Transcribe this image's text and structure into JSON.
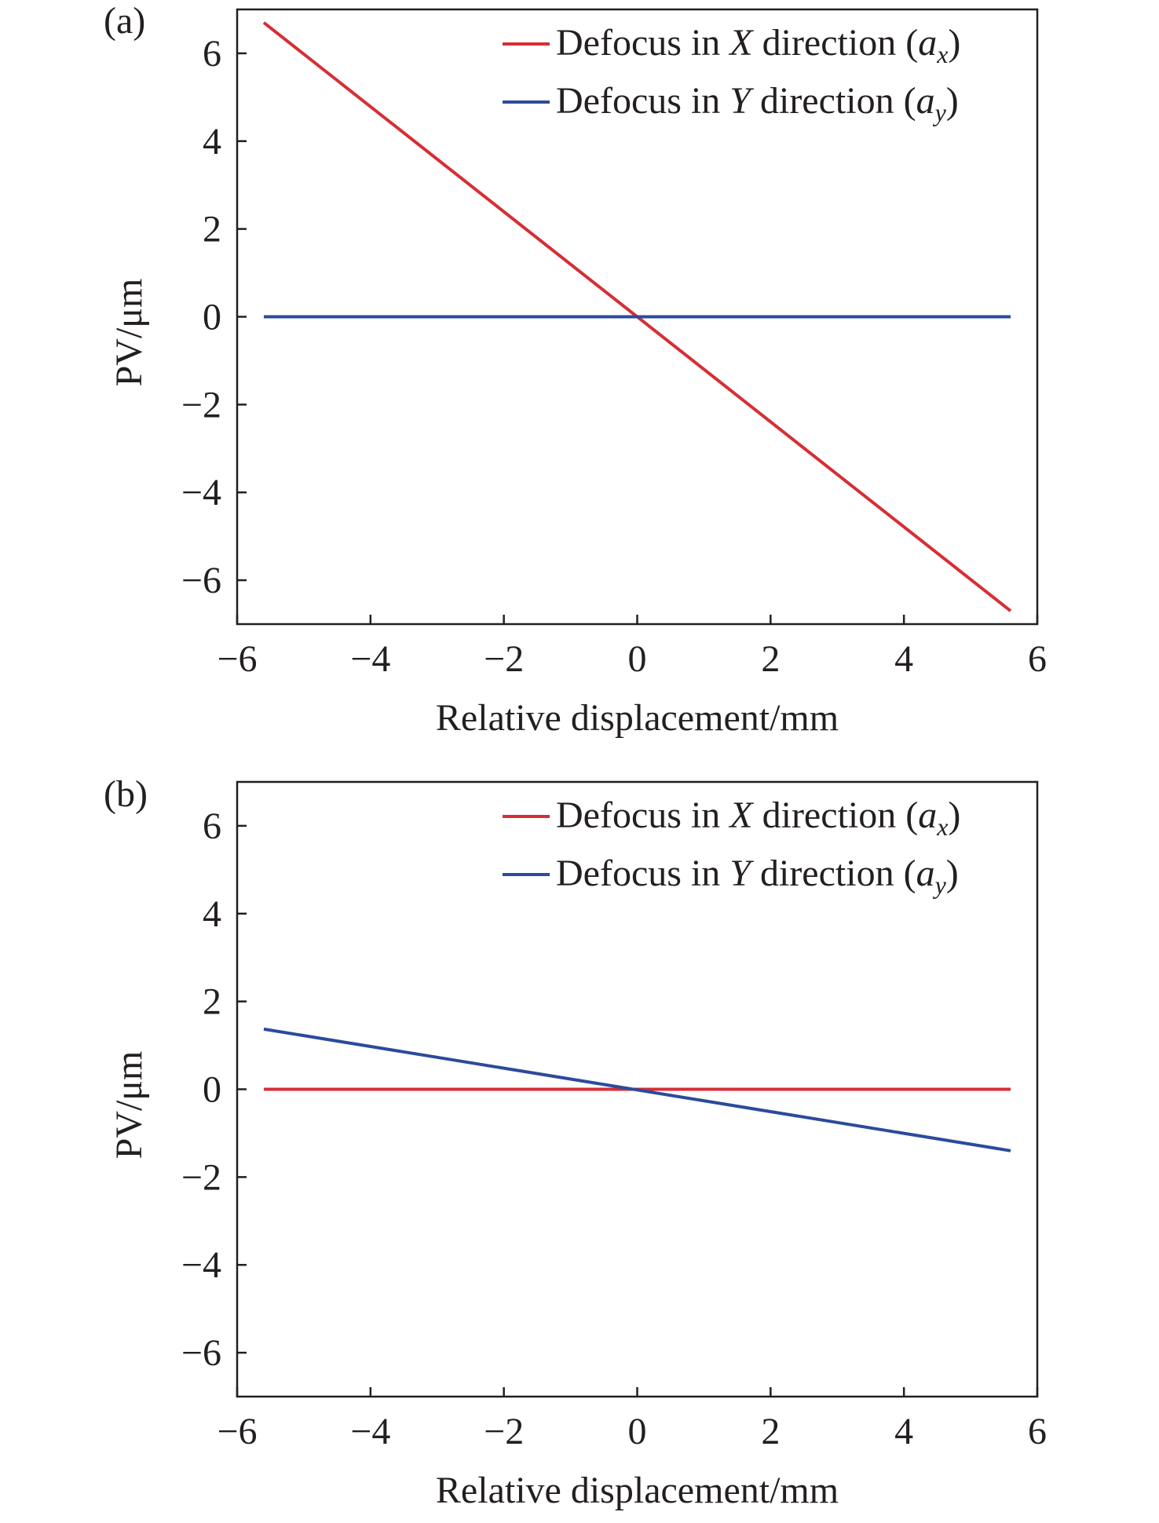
{
  "chart_data": [
    {
      "type": "line",
      "panel_label": "(a)",
      "xlabel": "Relative displacement/mm",
      "ylabel": "PV/μm",
      "xlim": [
        -6,
        6
      ],
      "ylim": [
        -7,
        7
      ],
      "xticks": [
        -6,
        -4,
        -2,
        0,
        2,
        4,
        6
      ],
      "yticks": [
        -6,
        -4,
        -2,
        0,
        2,
        4,
        6
      ],
      "xtick_labels": [
        "−6",
        "−4",
        "−2",
        "0",
        "2",
        "4",
        "6"
      ],
      "ytick_labels": [
        "−6",
        "−4",
        "−2",
        "0",
        "2",
        "4",
        "6"
      ],
      "legend_position": "top-right",
      "grid": false,
      "series": [
        {
          "name": "Defocus in X direction (ax)",
          "legend_prefix": "Defocus in ",
          "legend_axis": "X",
          "legend_mid": " direction (",
          "legend_a": "a",
          "legend_sub": "x",
          "legend_end": ")",
          "color": "#d62e35",
          "x": [
            -5.6,
            5.6
          ],
          "y": [
            6.7,
            -6.7
          ]
        },
        {
          "name": "Defocus in Y direction (ay)",
          "legend_prefix": "Defocus in ",
          "legend_axis": "Y",
          "legend_mid": " direction (",
          "legend_a": "a",
          "legend_sub": "y",
          "legend_end": ")",
          "color": "#2b4b9b",
          "x": [
            -5.6,
            5.6
          ],
          "y": [
            0,
            0
          ]
        }
      ]
    },
    {
      "type": "line",
      "panel_label": "(b)",
      "xlabel": "Relative displacement/mm",
      "ylabel": "PV/μm",
      "xlim": [
        -6,
        6
      ],
      "ylim": [
        -7,
        7
      ],
      "xticks": [
        -6,
        -4,
        -2,
        0,
        2,
        4,
        6
      ],
      "yticks": [
        -6,
        -4,
        -2,
        0,
        2,
        4,
        6
      ],
      "xtick_labels": [
        "−6",
        "−4",
        "−2",
        "0",
        "2",
        "4",
        "6"
      ],
      "ytick_labels": [
        "−6",
        "−4",
        "−2",
        "0",
        "2",
        "4",
        "6"
      ],
      "legend_position": "top-right",
      "grid": false,
      "series": [
        {
          "name": "Defocus in X direction (ax)",
          "legend_prefix": "Defocus in ",
          "legend_axis": "X",
          "legend_mid": " direction (",
          "legend_a": "a",
          "legend_sub": "x",
          "legend_end": ")",
          "color": "#d62e35",
          "x": [
            -5.6,
            5.6
          ],
          "y": [
            0,
            0
          ]
        },
        {
          "name": "Defocus in Y direction (ay)",
          "legend_prefix": "Defocus in ",
          "legend_axis": "Y",
          "legend_mid": " direction (",
          "legend_a": "a",
          "legend_sub": "y",
          "legend_end": ")",
          "color": "#2b4b9b",
          "x": [
            -5.6,
            5.6
          ],
          "y": [
            1.37,
            -1.4
          ]
        }
      ]
    }
  ]
}
